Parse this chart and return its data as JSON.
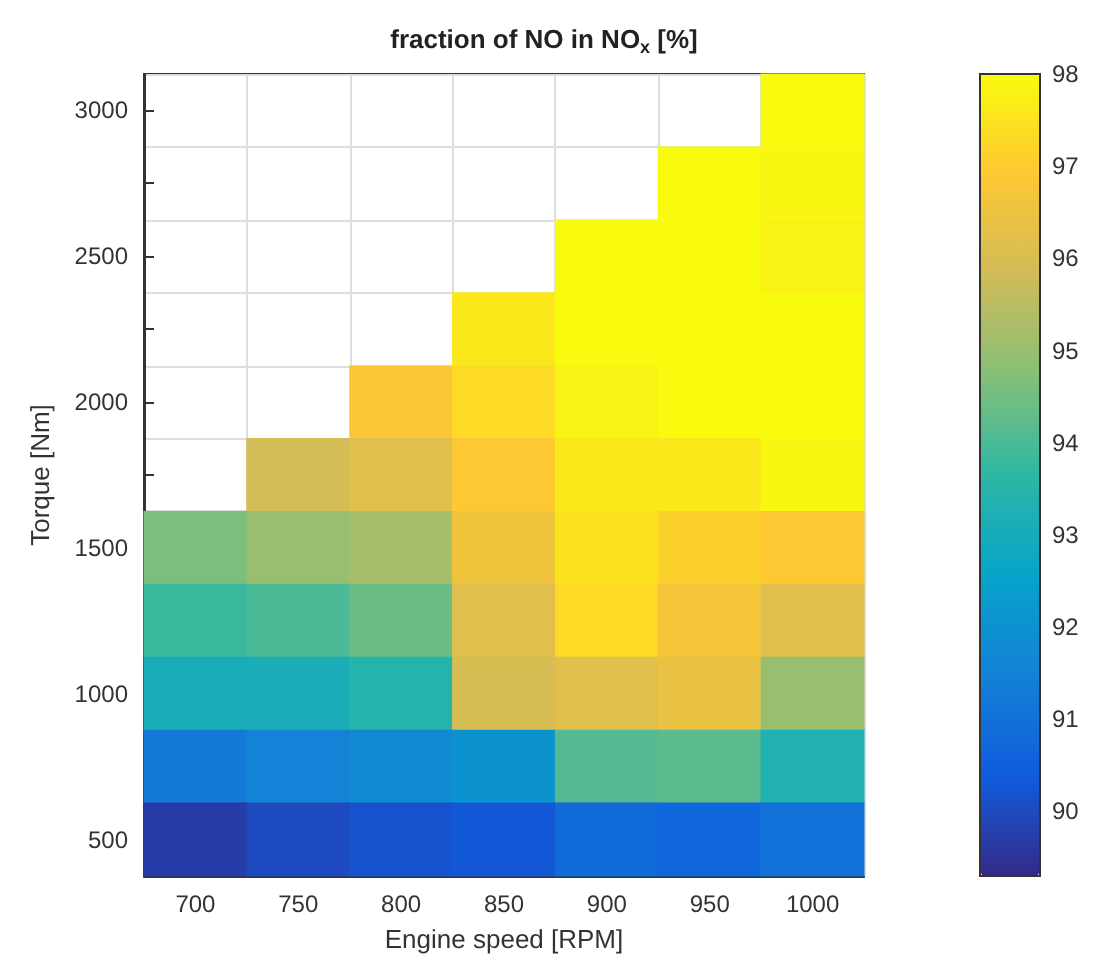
{
  "chart_data": {
    "type": "heatmap",
    "title": "fraction of NO in NO$_{x}$ [%]",
    "xlabel": "Engine speed [RPM]",
    "ylabel": "Torque [Nm]",
    "categories": [
      "700",
      "750",
      "800",
      "850",
      "900",
      "950",
      "1000"
    ],
    "y_categories": [
      "3000",
      null,
      "2500",
      null,
      "2000",
      null,
      "1500",
      null,
      "1000",
      null,
      "500"
    ],
    "cells": [
      [
        null,
        null,
        null,
        null,
        null,
        null,
        98.3
      ],
      [
        null,
        null,
        null,
        null,
        null,
        98.2,
        97.9
      ],
      [
        null,
        null,
        null,
        null,
        98.5,
        98.0,
        97.8
      ],
      [
        null,
        null,
        null,
        97.6,
        98.2,
        98.3,
        98.1
      ],
      [
        null,
        null,
        96.8,
        97.3,
        97.8,
        98.0,
        98.3
      ],
      [
        null,
        95.9,
        96.2,
        96.9,
        97.6,
        97.6,
        97.9
      ],
      [
        94.6,
        95.0,
        95.2,
        96.6,
        97.5,
        97.1,
        96.9
      ],
      [
        93.8,
        94.0,
        94.4,
        96.2,
        97.3,
        96.7,
        96.2
      ],
      [
        93.1,
        93.1,
        93.4,
        96.0,
        96.2,
        96.4,
        95.0
      ],
      [
        91.3,
        91.5,
        91.8,
        92.0,
        94.1,
        94.2,
        93.3
      ],
      [
        89.7,
        90.0,
        90.2,
        90.3,
        90.8,
        90.7,
        91.0
      ]
    ],
    "clim": [
      89.3,
      98
    ],
    "cticks": [
      90,
      91,
      92,
      93,
      94,
      95,
      96,
      97,
      98
    ],
    "grid": true
  }
}
